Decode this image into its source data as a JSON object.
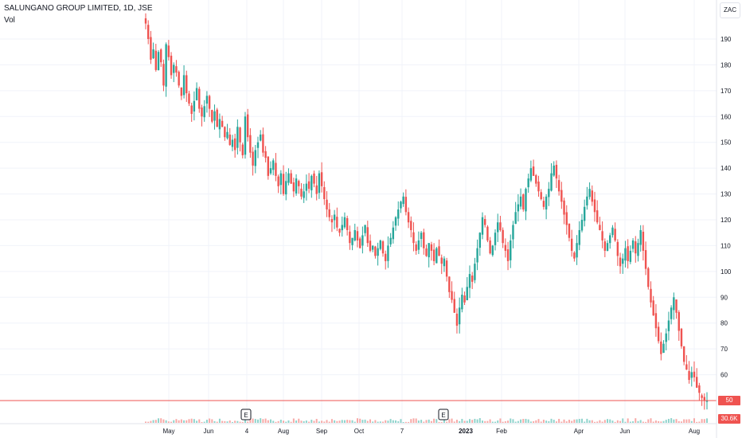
{
  "header": {
    "title": "SALUNGANO GROUP LIMITED, 1D, JSE",
    "volume_label": "Vol",
    "currency": "ZAC"
  },
  "colors": {
    "up": "#26a69a",
    "down": "#ef5350",
    "grid": "#f0f3fa",
    "price_line": "#ef5350",
    "vol_up": "#8fd3cc",
    "vol_down": "#f7a9a7"
  },
  "chart_data": {
    "type": "candlestick",
    "title": "SALUNGANO GROUP LIMITED, 1D, JSE",
    "ylim": [
      46,
      200
    ],
    "y_ticks": [
      60,
      70,
      80,
      90,
      100,
      110,
      120,
      130,
      140,
      150,
      160,
      170,
      180,
      190
    ],
    "x_ticks": [
      "May",
      "Jun",
      "4",
      "Aug",
      "Sep",
      "Oct",
      "7",
      "2023",
      "Feb",
      "Apr",
      "Jun",
      "Aug"
    ],
    "last_price": 50,
    "last_volume": "30.6K",
    "events": [
      "E",
      "E"
    ],
    "grid": true,
    "series": [
      {
        "name": "price",
        "close": [
          196,
          190,
          182,
          186,
          178,
          185,
          181,
          172,
          188,
          183,
          176,
          180,
          177,
          172,
          168,
          176,
          169,
          165,
          161,
          166,
          171,
          163,
          160,
          164,
          168,
          163,
          158,
          162,
          156,
          159,
          156,
          152,
          154,
          149,
          151,
          147,
          156,
          150,
          145,
          160,
          152,
          146,
          141,
          147,
          150,
          153,
          146,
          144,
          137,
          140,
          143,
          137,
          133,
          138,
          130,
          135,
          138,
          134,
          131,
          136,
          133,
          129,
          131,
          134,
          132,
          137,
          134,
          130,
          138,
          133,
          128,
          124,
          121,
          119,
          122,
          117,
          115,
          118,
          121,
          116,
          111,
          113,
          116,
          112,
          109,
          114,
          118,
          111,
          108,
          110,
          106,
          109,
          112,
          107,
          104,
          110,
          113,
          117,
          121,
          124,
          127,
          129,
          123,
          119,
          116,
          111,
          108,
          112,
          115,
          109,
          106,
          111,
          108,
          104,
          109,
          106,
          103,
          105,
          98,
          92,
          89,
          84,
          79,
          86,
          91,
          88,
          94,
          99,
          96,
          103,
          109,
          115,
          121,
          118,
          112,
          107,
          110,
          115,
          119,
          116,
          111,
          108,
          104,
          112,
          118,
          123,
          126,
          129,
          124,
          132,
          136,
          140,
          137,
          134,
          131,
          128,
          125,
          129,
          132,
          138,
          141,
          136,
          131,
          127,
          122,
          118,
          113,
          108,
          105,
          111,
          116,
          120,
          125,
          129,
          132,
          127,
          123,
          119,
          116,
          112,
          108,
          111,
          114,
          117,
          112,
          106,
          102,
          105,
          109,
          104,
          108,
          112,
          107,
          111,
          116,
          108,
          101,
          94,
          88,
          83,
          78,
          73,
          68,
          72,
          76,
          81,
          86,
          90,
          84,
          77,
          71,
          65,
          62,
          58,
          61,
          59,
          55,
          53,
          51,
          50,
          50
        ]
      }
    ]
  }
}
